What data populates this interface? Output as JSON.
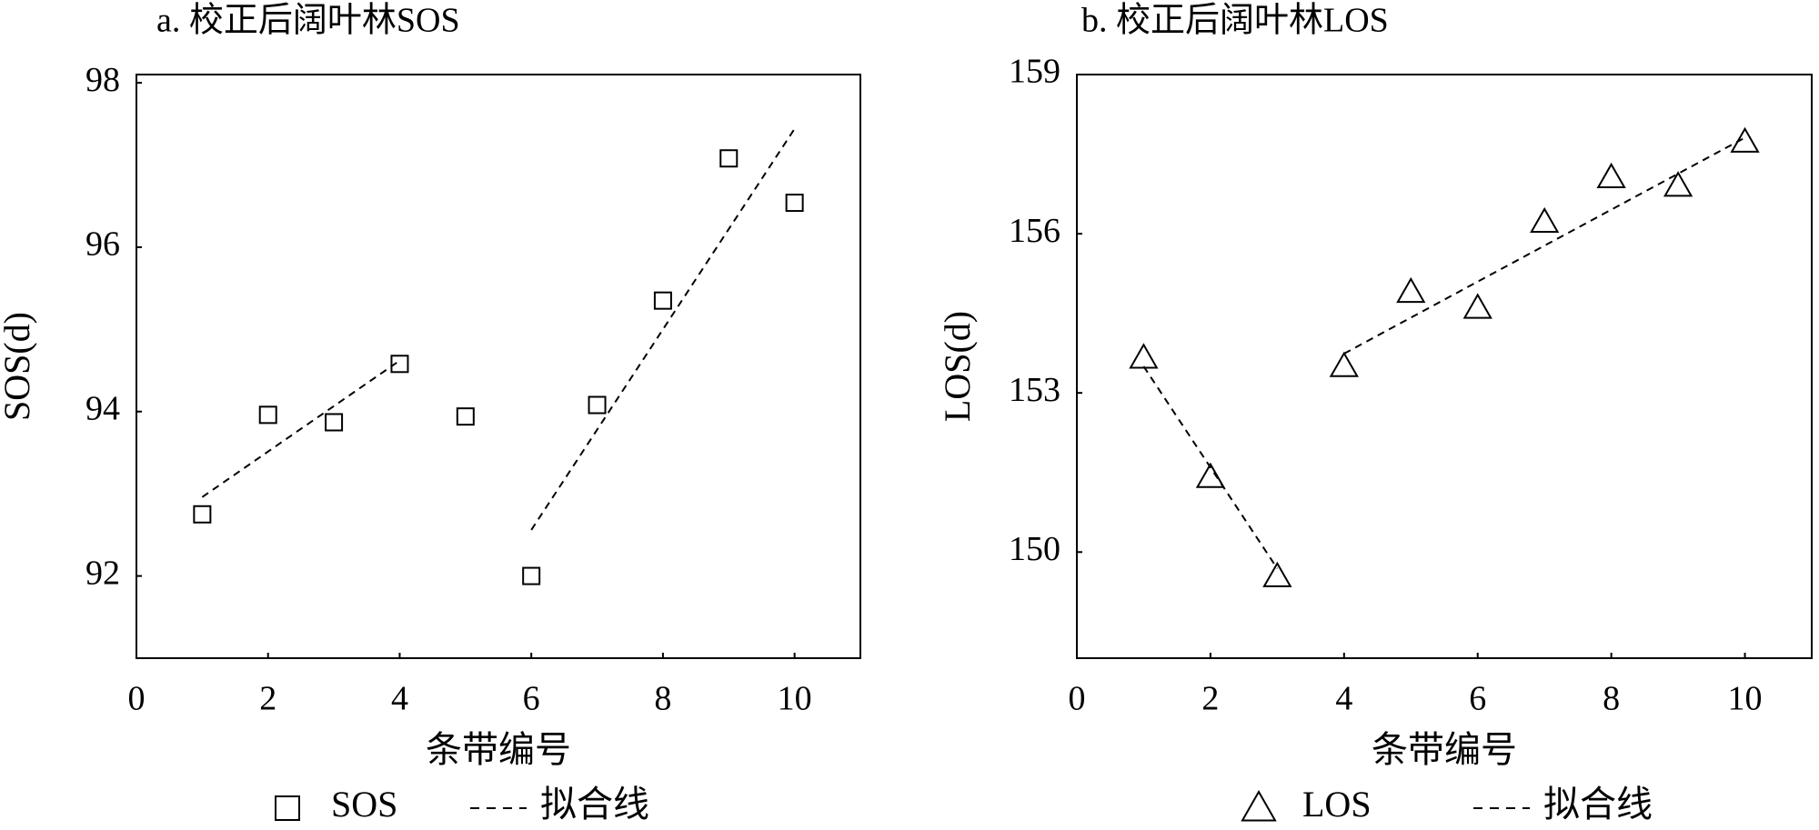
{
  "chart_data": [
    {
      "type": "scatter",
      "title": "a. 校正后阔叶林SOS",
      "xlabel": "条带编号",
      "ylabel": "SOS(d)",
      "xlim": [
        0,
        11
      ],
      "xticks": [
        0,
        2,
        4,
        6,
        8,
        10
      ],
      "ylim": [
        91,
        98.1
      ],
      "yticks": [
        92,
        94,
        96,
        98
      ],
      "grid": false,
      "legend": "bottom",
      "series": [
        {
          "name": "SOS",
          "marker": "square",
          "color": "#000000",
          "x": [
            1,
            2,
            3,
            4,
            5,
            6,
            7,
            8,
            9,
            10
          ],
          "values": [
            92.75,
            93.96,
            93.87,
            94.58,
            93.94,
            92.0,
            94.08,
            95.35,
            97.08,
            96.54
          ]
        },
        {
          "name": "拟合线",
          "marker": "dashed-line",
          "color": "#000000",
          "x": [
            1,
            4,
            5,
            6,
            10
          ],
          "values": [
            92.96,
            94.62,
            null,
            92.56,
            97.44
          ]
        }
      ]
    },
    {
      "type": "scatter",
      "title": "b. 校正后阔叶林LOS",
      "xlabel": "条带编号",
      "ylabel": "LOS(d)",
      "xlim": [
        0,
        11
      ],
      "xticks": [
        0,
        2,
        4,
        6,
        8,
        10
      ],
      "ylim": [
        148,
        159
      ],
      "yticks": [
        150,
        153,
        156,
        159
      ],
      "grid": false,
      "legend": "bottom",
      "series": [
        {
          "name": "LOS",
          "marker": "triangle",
          "color": "#000000",
          "x": [
            1,
            2,
            3,
            4,
            5,
            6,
            7,
            8,
            9,
            10
          ],
          "values": [
            153.66,
            151.41,
            149.54,
            153.5,
            154.9,
            154.6,
            156.22,
            157.06,
            156.9,
            157.73
          ]
        },
        {
          "name": "拟合线",
          "marker": "dashed-line",
          "color": "#000000",
          "x": [
            1,
            3,
            3.5,
            4,
            10
          ],
          "values": [
            153.5,
            149.69,
            null,
            153.74,
            157.81
          ]
        }
      ]
    }
  ]
}
